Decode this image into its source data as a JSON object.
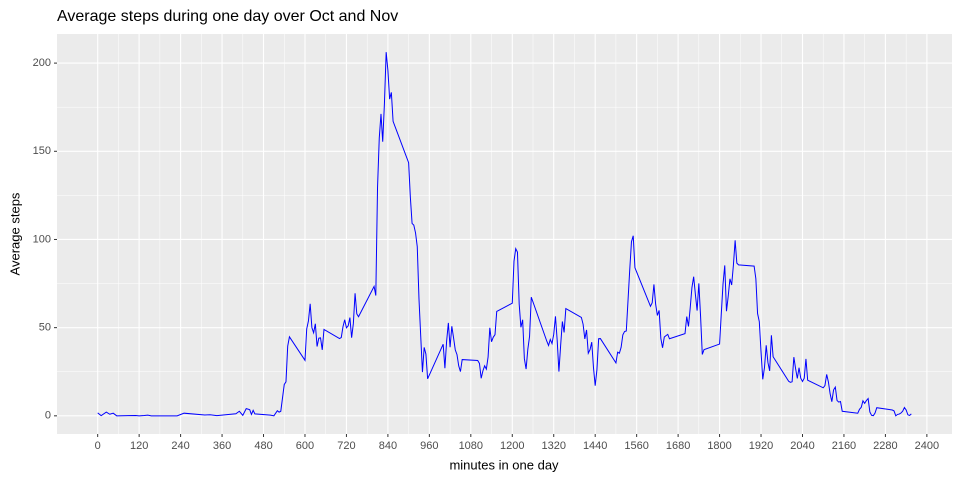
{
  "chart_data": {
    "type": "line",
    "title": "Average steps during one day over Oct and Nov",
    "x_label": "minutes in one day",
    "y_label": "Average steps",
    "x": [
      0,
      10,
      25,
      35,
      45,
      55,
      110,
      120,
      135,
      145,
      155,
      205,
      230,
      250,
      310,
      325,
      345,
      400,
      410,
      420,
      430,
      440,
      445,
      450,
      455,
      500,
      510,
      520,
      525,
      530,
      540,
      545,
      550,
      555,
      600,
      605,
      610,
      615,
      620,
      625,
      630,
      635,
      640,
      645,
      650,
      655,
      700,
      705,
      710,
      715,
      720,
      725,
      730,
      735,
      740,
      745,
      750,
      755,
      800,
      805,
      810,
      815,
      820,
      825,
      830,
      835,
      840,
      845,
      850,
      855,
      900,
      905,
      910,
      915,
      920,
      925,
      930,
      935,
      940,
      945,
      950,
      955,
      1000,
      1005,
      1010,
      1015,
      1020,
      1025,
      1030,
      1035,
      1040,
      1045,
      1050,
      1055,
      1100,
      1105,
      1110,
      1115,
      1120,
      1125,
      1130,
      1135,
      1140,
      1145,
      1150,
      1155,
      1200,
      1205,
      1210,
      1215,
      1220,
      1225,
      1230,
      1235,
      1240,
      1245,
      1250,
      1255,
      1300,
      1305,
      1310,
      1315,
      1320,
      1325,
      1330,
      1335,
      1340,
      1345,
      1350,
      1355,
      1400,
      1405,
      1410,
      1415,
      1420,
      1425,
      1430,
      1435,
      1440,
      1445,
      1450,
      1455,
      1500,
      1505,
      1510,
      1515,
      1520,
      1525,
      1530,
      1535,
      1540,
      1545,
      1550,
      1555,
      1600,
      1605,
      1610,
      1615,
      1620,
      1625,
      1630,
      1635,
      1640,
      1645,
      1650,
      1655,
      1700,
      1705,
      1710,
      1715,
      1720,
      1725,
      1730,
      1735,
      1740,
      1745,
      1750,
      1755,
      1800,
      1805,
      1810,
      1815,
      1820,
      1825,
      1830,
      1835,
      1840,
      1845,
      1850,
      1855,
      1900,
      1905,
      1910,
      1915,
      1920,
      1925,
      1930,
      1935,
      1940,
      1945,
      1950,
      1955,
      2000,
      2005,
      2010,
      2015,
      2020,
      2025,
      2030,
      2035,
      2040,
      2045,
      2050,
      2055,
      2100,
      2105,
      2110,
      2115,
      2120,
      2125,
      2130,
      2135,
      2140,
      2145,
      2150,
      2155,
      2200,
      2205,
      2210,
      2215,
      2220,
      2225,
      2230,
      2235,
      2240,
      2245,
      2250,
      2255,
      2300,
      2305,
      2310,
      2315,
      2320,
      2325,
      2330,
      2335,
      2340,
      2345,
      2350,
      2355
    ],
    "series": [
      {
        "name": "Average steps",
        "color": "#0000ff",
        "values": [
          1.7,
          0.1,
          2.1,
          0.9,
          1.5,
          0,
          0.2,
          0,
          0.2,
          0.4,
          0,
          0,
          0,
          1.5,
          0.5,
          0.6,
          0.1,
          1.2,
          2.6,
          0.3,
          4.1,
          3.5,
          0.8,
          3.1,
          1.1,
          0.4,
          0,
          2.9,
          2.1,
          2.6,
          17.8,
          19.3,
          39.5,
          44.8,
          31.5,
          49.3,
          53.8,
          63.5,
          50,
          47.1,
          52.2,
          39.3,
          44,
          44.2,
          37.4,
          49,
          43.8,
          44.4,
          50.5,
          54.5,
          49.9,
          51,
          55.7,
          44.3,
          52.3,
          69.5,
          57.8,
          56.2,
          73.4,
          68.2,
          129.4,
          157.5,
          171.2,
          155.4,
          177.3,
          206.2,
          195.9,
          179.6,
          183.4,
          167,
          143.5,
          124,
          109.1,
          108.1,
          103.7,
          95.9,
          66.2,
          45.2,
          24.8,
          38.8,
          35,
          21,
          40.6,
          27,
          42.4,
          52.7,
          38.9,
          50.8,
          44.3,
          37.4,
          34.7,
          28.3,
          25.1,
          31.9,
          31.4,
          29.7,
          21.3,
          25.5,
          28.4,
          26.5,
          33.4,
          49.9,
          42,
          44.6,
          46,
          59.2,
          63.9,
          87.7,
          94.8,
          92.8,
          63.4,
          50.2,
          54.5,
          32.4,
          26.5,
          37.7,
          45,
          67.3,
          42.3,
          39.9,
          43.3,
          41,
          46.2,
          56.4,
          42.8,
          25.1,
          39.9,
          53.5,
          47.3,
          60.8,
          55.8,
          51.9,
          43.6,
          48.7,
          35.5,
          37.5,
          41.8,
          27.5,
          17.1,
          26.1,
          43.7,
          43.8,
          30,
          36.1,
          35.5,
          38.8,
          45.9,
          47.8,
          48.1,
          65.3,
          82.9,
          98.7,
          102.1,
          84,
          62.1,
          64.1,
          74.5,
          63.2,
          56.9,
          59.8,
          43.9,
          38.6,
          44.7,
          45.5,
          46.2,
          43.7,
          46.6,
          56.3,
          50.7,
          61.2,
          72.7,
          78.9,
          68.9,
          59.7,
          75.1,
          56.5,
          34.8,
          37.5,
          40.7,
          58,
          74.7,
          85.3,
          59.3,
          67.8,
          77.7,
          74.2,
          85.3,
          99.5,
          86.6,
          85.6,
          84.9,
          77.8,
          58,
          53.4,
          36.3,
          20.7,
          27.4,
          40,
          30.2,
          25.5,
          45.7,
          33.5,
          19.6,
          19,
          19.3,
          33.3,
          26.8,
          21.2,
          27.3,
          21.3,
          19.5,
          21.3,
          32.3,
          20.2,
          15.9,
          17.2,
          23.5,
          19.2,
          12.5,
          8,
          14.7,
          16.3,
          8.7,
          7.8,
          8.1,
          2.6,
          1.5,
          3.7,
          4.8,
          8.5,
          7.1,
          8.7,
          9.8,
          2.2,
          0.3,
          0.1,
          1.6,
          4.6,
          3.3,
          2.8,
          0,
          0.8,
          1,
          1.6,
          2.6,
          4.7,
          3.3,
          0.6,
          0.2,
          1.1
        ]
      }
    ],
    "xlim": [
      -117.75,
      2472.75
    ],
    "xticks": [
      0,
      120,
      240,
      360,
      480,
      600,
      720,
      840,
      960,
      1080,
      1200,
      1320,
      1440,
      1560,
      1680,
      1800,
      1920,
      2040,
      2160,
      2280,
      2400
    ],
    "ylim": [
      -10.3,
      216.5
    ],
    "yticks": [
      0,
      50,
      100,
      150,
      200
    ],
    "grid": true
  }
}
